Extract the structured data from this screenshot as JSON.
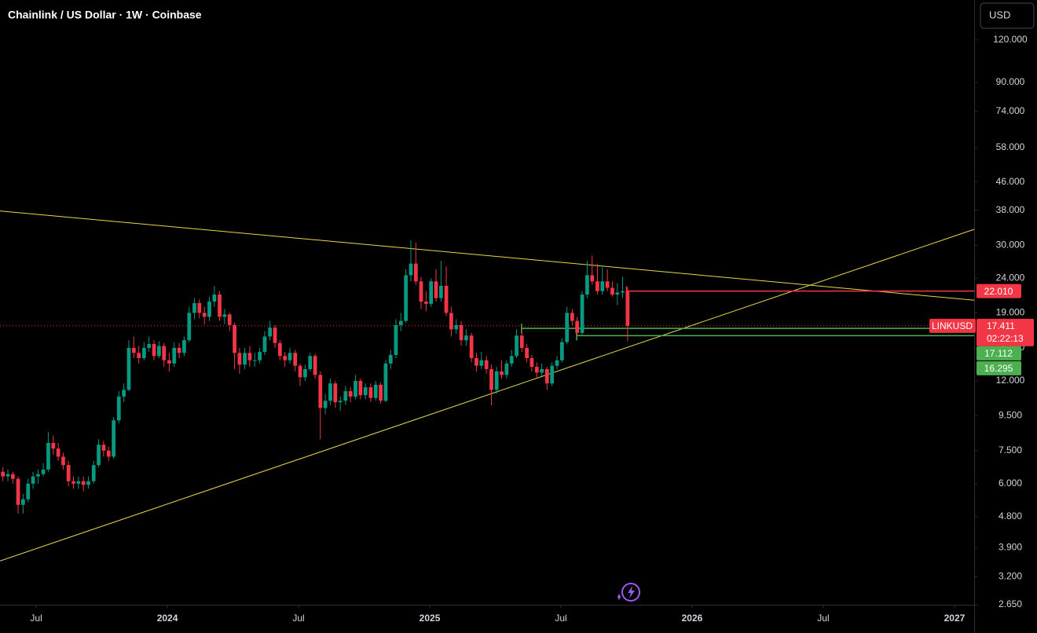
{
  "chart_data": {
    "type": "candlestick",
    "title": "Chainlink / US Dollar · 1W · Coinbase",
    "currency": "USD",
    "symbol": "LINKUSD",
    "countdown": "02:22:13",
    "log_scale": true,
    "grid": false,
    "up_color": "#089981",
    "down_color": "#f23645",
    "xlim": [
      2023.362,
      2027.075
    ],
    "xticks": [
      {
        "value": 2023.5,
        "label": "Jul"
      },
      2024,
      {
        "value": 2024.5,
        "label": "Jul"
      },
      2025,
      {
        "value": 2025.5,
        "label": "Jul"
      },
      2026,
      {
        "value": 2026.5,
        "label": "Jul"
      },
      2027
    ],
    "ylim": [
      2.65,
      157
    ],
    "yticks": [
      {
        "value": 120,
        "label": "120.000"
      },
      {
        "value": 90,
        "label": "90.000"
      },
      {
        "value": 74,
        "label": "74.000"
      },
      {
        "value": 58,
        "label": "58.000"
      },
      {
        "value": 46,
        "label": "46.000"
      },
      {
        "value": 38,
        "label": "38.000"
      },
      {
        "value": 30,
        "label": "30.000"
      },
      {
        "value": 24,
        "label": "24.000"
      },
      {
        "value": 19,
        "label": "19.000"
      },
      {
        "value": 15,
        "label": "15.000"
      },
      {
        "value": 12,
        "label": "12.000"
      },
      {
        "value": 9.5,
        "label": "9.500"
      },
      {
        "value": 7.5,
        "label": "7.500"
      },
      {
        "value": 6,
        "label": "6.000"
      },
      {
        "value": 4.8,
        "label": "4.800"
      },
      {
        "value": 3.9,
        "label": "3.900"
      },
      {
        "value": 3.2,
        "label": "3.200"
      },
      {
        "value": 2.65,
        "label": "2.650"
      }
    ],
    "x": [
      2023.373,
      2023.392,
      2023.411,
      2023.431,
      2023.45,
      2023.469,
      2023.488,
      2023.507,
      2023.527,
      2023.546,
      2023.565,
      2023.584,
      2023.603,
      2023.623,
      2023.642,
      2023.661,
      2023.68,
      2023.699,
      2023.719,
      2023.738,
      2023.757,
      2023.776,
      2023.795,
      2023.815,
      2023.834,
      2023.853,
      2023.872,
      2023.891,
      2023.911,
      2023.93,
      2023.949,
      2023.968,
      2023.987,
      2024.007,
      2024.026,
      2024.045,
      2024.064,
      2024.083,
      2024.103,
      2024.122,
      2024.141,
      2024.16,
      2024.179,
      2024.199,
      2024.218,
      2024.237,
      2024.256,
      2024.275,
      2024.295,
      2024.314,
      2024.333,
      2024.352,
      2024.371,
      2024.391,
      2024.41,
      2024.429,
      2024.448,
      2024.467,
      2024.487,
      2024.506,
      2024.525,
      2024.544,
      2024.563,
      2024.583,
      2024.602,
      2024.621,
      2024.64,
      2024.659,
      2024.679,
      2024.698,
      2024.717,
      2024.736,
      2024.755,
      2024.775,
      2024.794,
      2024.813,
      2024.832,
      2024.851,
      2024.871,
      2024.89,
      2024.909,
      2024.928,
      2024.947,
      2024.967,
      2024.986,
      2025.005,
      2025.024,
      2025.043,
      2025.063,
      2025.082,
      2025.101,
      2025.12,
      2025.139,
      2025.159,
      2025.178,
      2025.197,
      2025.216,
      2025.235,
      2025.255,
      2025.274,
      2025.293,
      2025.312,
      2025.331,
      2025.351,
      2025.37,
      2025.389,
      2025.408,
      2025.427,
      2025.447,
      2025.466,
      2025.485,
      2025.504,
      2025.523,
      2025.543,
      2025.562,
      2025.581,
      2025.6,
      2025.619,
      2025.639,
      2025.658,
      2025.677,
      2025.696,
      2025.715,
      2025.735,
      2025.754
    ],
    "open": [
      6.5,
      6.3,
      6.4,
      6.2,
      5.2,
      5.4,
      6.0,
      6.3,
      6.4,
      6.6,
      7.9,
      7.6,
      7.2,
      6.8,
      6.1,
      6.0,
      6.1,
      5.95,
      6.1,
      6.8,
      7.8,
      7.5,
      7.2,
      9.2,
      10.8,
      11.3,
      15.0,
      14.5,
      14.0,
      15.0,
      15.4,
      14.2,
      15.2,
      13.8,
      13.5,
      15.0,
      14.5,
      15.8,
      19.0,
      20.3,
      19.0,
      18.5,
      20.5,
      21.5,
      18.5,
      18.8,
      17.5,
      14.5,
      13.4,
      14.5,
      13.8,
      13.8,
      14.6,
      16.2,
      17.2,
      15.5,
      14.2,
      13.8,
      14.5,
      13.3,
      12.3,
      13.0,
      14.2,
      12.5,
      10.0,
      10.5,
      11.8,
      10.4,
      10.5,
      11.2,
      10.8,
      12.0,
      10.9,
      11.5,
      10.7,
      11.7,
      10.5,
      13.5,
      14.3,
      17.5,
      18.0,
      24.5,
      26.5,
      23.5,
      20.5,
      20.2,
      23.5,
      21.0,
      22.8,
      19.0,
      17.0,
      17.5,
      15.8,
      16.3,
      14.0,
      13.3,
      13.8,
      13.0,
      11.3,
      12.8,
      12.5,
      13.5,
      14.2,
      16.3,
      15.0,
      14.0,
      13.2,
      12.7,
      13.0,
      11.8,
      13.3,
      13.8,
      15.6,
      19.0,
      18.0,
      16.6,
      21.5,
      24.5,
      23.5,
      22.0,
      23.5,
      22.5,
      21.5,
      21.8,
      22.0
    ],
    "high": [
      6.7,
      6.6,
      6.5,
      6.3,
      5.6,
      6.2,
      6.5,
      6.6,
      6.9,
      8.5,
      8.3,
      7.9,
      7.4,
      7.0,
      6.3,
      6.3,
      6.3,
      6.3,
      7.0,
      8.1,
      8.0,
      7.7,
      9.4,
      11.2,
      11.8,
      15.8,
      16.2,
      15.2,
      15.6,
      16.2,
      15.8,
      15.7,
      15.5,
      14.5,
      15.6,
      15.5,
      16.2,
      19.8,
      21.0,
      20.8,
      19.8,
      21.2,
      22.8,
      22.0,
      19.5,
      19.0,
      17.8,
      15.0,
      15.0,
      15.2,
      14.5,
      15.0,
      16.8,
      18.0,
      17.5,
      15.8,
      14.6,
      15.0,
      14.8,
      13.5,
      13.4,
      14.5,
      14.4,
      12.8,
      11.0,
      12.2,
      12.0,
      10.8,
      11.6,
      11.5,
      12.5,
      12.2,
      11.8,
      11.8,
      12.0,
      11.9,
      13.8,
      14.8,
      18.2,
      19.0,
      25.5,
      31.0,
      30.5,
      24.2,
      22.0,
      24.0,
      25.5,
      27.0,
      26.0,
      19.8,
      18.2,
      18.0,
      17.0,
      16.6,
      14.5,
      14.6,
      14.2,
      13.4,
      13.2,
      13.8,
      13.8,
      14.8,
      17.0,
      16.8,
      15.4,
      14.3,
      13.6,
      13.5,
      13.2,
      13.6,
      14.2,
      16.0,
      19.8,
      19.5,
      18.5,
      22.0,
      27.0,
      28.0,
      26.5,
      25.8,
      25.5,
      23.5,
      23.2,
      24.2,
      22.6
    ],
    "low": [
      6.1,
      6.1,
      6.0,
      4.9,
      4.9,
      5.3,
      5.8,
      6.0,
      6.3,
      6.5,
      7.3,
      7.0,
      6.6,
      5.9,
      5.8,
      5.8,
      5.7,
      5.8,
      6.0,
      6.7,
      7.2,
      7.0,
      7.1,
      9.0,
      10.4,
      11.2,
      14.0,
      13.5,
      13.8,
      14.6,
      13.8,
      14.0,
      13.2,
      12.8,
      13.2,
      14.0,
      14.2,
      15.6,
      18.2,
      18.3,
      17.6,
      18.0,
      19.8,
      18.0,
      17.6,
      16.8,
      13.0,
      12.6,
      13.0,
      13.2,
      13.2,
      13.5,
      14.3,
      15.8,
      15.0,
      13.8,
      13.2,
      13.5,
      12.8,
      11.6,
      12.0,
      12.8,
      12.2,
      8.1,
      9.6,
      10.2,
      10.0,
      9.8,
      10.2,
      10.4,
      10.6,
      10.6,
      10.6,
      10.4,
      10.5,
      10.3,
      10.4,
      13.0,
      14.0,
      16.8,
      17.8,
      23.5,
      23.0,
      19.5,
      19.2,
      19.8,
      20.5,
      20.5,
      18.6,
      16.2,
      16.5,
      15.2,
      15.2,
      13.6,
      12.8,
      13.0,
      12.6,
      10.2,
      11.0,
      12.2,
      12.2,
      13.2,
      14.0,
      14.6,
      13.6,
      12.8,
      12.3,
      12.4,
      11.3,
      11.6,
      13.0,
      13.6,
      15.4,
      17.5,
      16.3,
      16.4,
      21.0,
      23.0,
      21.5,
      21.5,
      22.0,
      21.2,
      20.0,
      21.0,
      15.7
    ],
    "close": [
      6.3,
      6.4,
      6.2,
      5.2,
      5.4,
      6.0,
      6.3,
      6.4,
      6.6,
      7.9,
      7.6,
      7.2,
      6.8,
      6.1,
      6.0,
      6.1,
      5.95,
      6.1,
      6.8,
      7.8,
      7.5,
      7.2,
      9.2,
      10.8,
      11.3,
      15.0,
      14.5,
      14.0,
      15.0,
      15.4,
      14.2,
      15.2,
      13.8,
      13.5,
      15.0,
      14.5,
      15.8,
      19.0,
      20.3,
      19.0,
      18.5,
      20.5,
      21.5,
      18.5,
      18.8,
      17.5,
      14.5,
      13.4,
      14.5,
      13.8,
      13.8,
      14.6,
      16.2,
      17.2,
      15.5,
      14.2,
      13.8,
      14.5,
      13.3,
      12.3,
      13.0,
      14.2,
      12.5,
      10.0,
      10.5,
      11.8,
      10.4,
      10.5,
      11.2,
      10.8,
      12.0,
      10.9,
      11.5,
      10.7,
      11.7,
      10.5,
      13.5,
      14.3,
      17.5,
      18.0,
      24.5,
      26.5,
      23.5,
      20.5,
      20.2,
      23.5,
      21.0,
      22.8,
      19.0,
      17.0,
      17.5,
      15.8,
      16.3,
      14.0,
      13.3,
      13.8,
      13.0,
      11.3,
      12.8,
      12.5,
      13.5,
      14.2,
      16.3,
      15.0,
      14.0,
      13.2,
      12.7,
      13.0,
      11.8,
      13.3,
      13.8,
      15.6,
      19.0,
      18.0,
      16.6,
      21.5,
      24.5,
      23.5,
      22.0,
      23.5,
      22.5,
      21.5,
      21.8,
      22.0,
      17.411
    ],
    "last_price": 17.411,
    "last_price_color": "#f23645",
    "levels": [
      {
        "value": {
          "value": 22.01,
          "label": "22.010"
        },
        "color": "#f23645",
        "start": 2025.75
      },
      {
        "value": 17.112,
        "color": "#4caf50",
        "start": 2025.35
      },
      {
        "value": 16.295,
        "color": "#4caf50",
        "start": 2025.56
      }
    ],
    "trendlines": [
      {
        "color": "#e6d84a",
        "points": [
          [
            2023.362,
            37.8
          ],
          [
            2027.075,
            20.7
          ]
        ]
      },
      {
        "color": "#e6d84a",
        "points": [
          [
            2023.362,
            3.56
          ],
          [
            2027.075,
            33.4
          ]
        ]
      }
    ]
  }
}
